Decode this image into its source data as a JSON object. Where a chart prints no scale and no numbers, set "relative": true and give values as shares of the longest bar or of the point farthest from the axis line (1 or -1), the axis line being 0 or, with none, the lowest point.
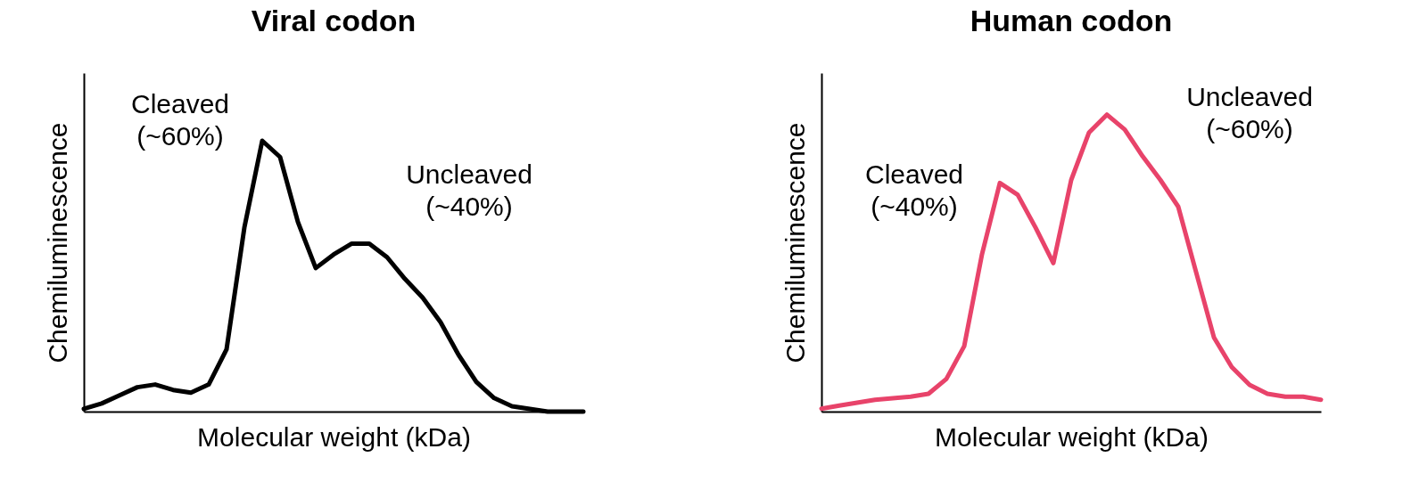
{
  "chart_data": [
    {
      "type": "line",
      "title": "Viral codon",
      "xlabel": "Molecular weight (kDa)",
      "ylabel": "Chemiluminescence",
      "relative": true,
      "categories": [
        null,
        null,
        null,
        null,
        null,
        null,
        null,
        null,
        null,
        null,
        null,
        null,
        null,
        null,
        null,
        null,
        null,
        null,
        null,
        null,
        null,
        null,
        null,
        null,
        null,
        null,
        null,
        null,
        null
      ],
      "series": [
        {
          "color": "#000000",
          "values": [
            0.01,
            0.03,
            0.06,
            0.09,
            0.1,
            0.08,
            0.07,
            0.1,
            0.23,
            0.68,
            1.0,
            0.94,
            0.7,
            0.53,
            0.58,
            0.62,
            0.62,
            0.57,
            0.49,
            0.42,
            0.33,
            0.21,
            0.11,
            0.05,
            0.02,
            0.01,
            0,
            0,
            0
          ]
        }
      ],
      "annotations": [
        "Cleaved\n(~60%)",
        "Uncleaved\n(~40%)"
      ]
    },
    {
      "type": "line",
      "title": "Human codon",
      "xlabel": "Molecular weight (kDa)",
      "ylabel": "Chemiluminescence",
      "relative": true,
      "categories": [
        null,
        null,
        null,
        null,
        null,
        null,
        null,
        null,
        null,
        null,
        null,
        null,
        null,
        null,
        null,
        null,
        null,
        null,
        null,
        null,
        null,
        null,
        null,
        null,
        null,
        null,
        null,
        null,
        null
      ],
      "series": [
        {
          "color": "#e8436a",
          "values": [
            0.01,
            0.02,
            0.03,
            0.04,
            0.045,
            0.05,
            0.06,
            0.11,
            0.22,
            0.53,
            0.77,
            0.73,
            0.62,
            0.5,
            0.78,
            0.94,
            1.0,
            0.95,
            0.86,
            0.78,
            0.69,
            0.47,
            0.25,
            0.15,
            0.09,
            0.06,
            0.05,
            0.05,
            0.04
          ]
        }
      ],
      "annotations": [
        "Cleaved\n(~40%)",
        "Uncleaved\n(~60%)"
      ]
    }
  ]
}
